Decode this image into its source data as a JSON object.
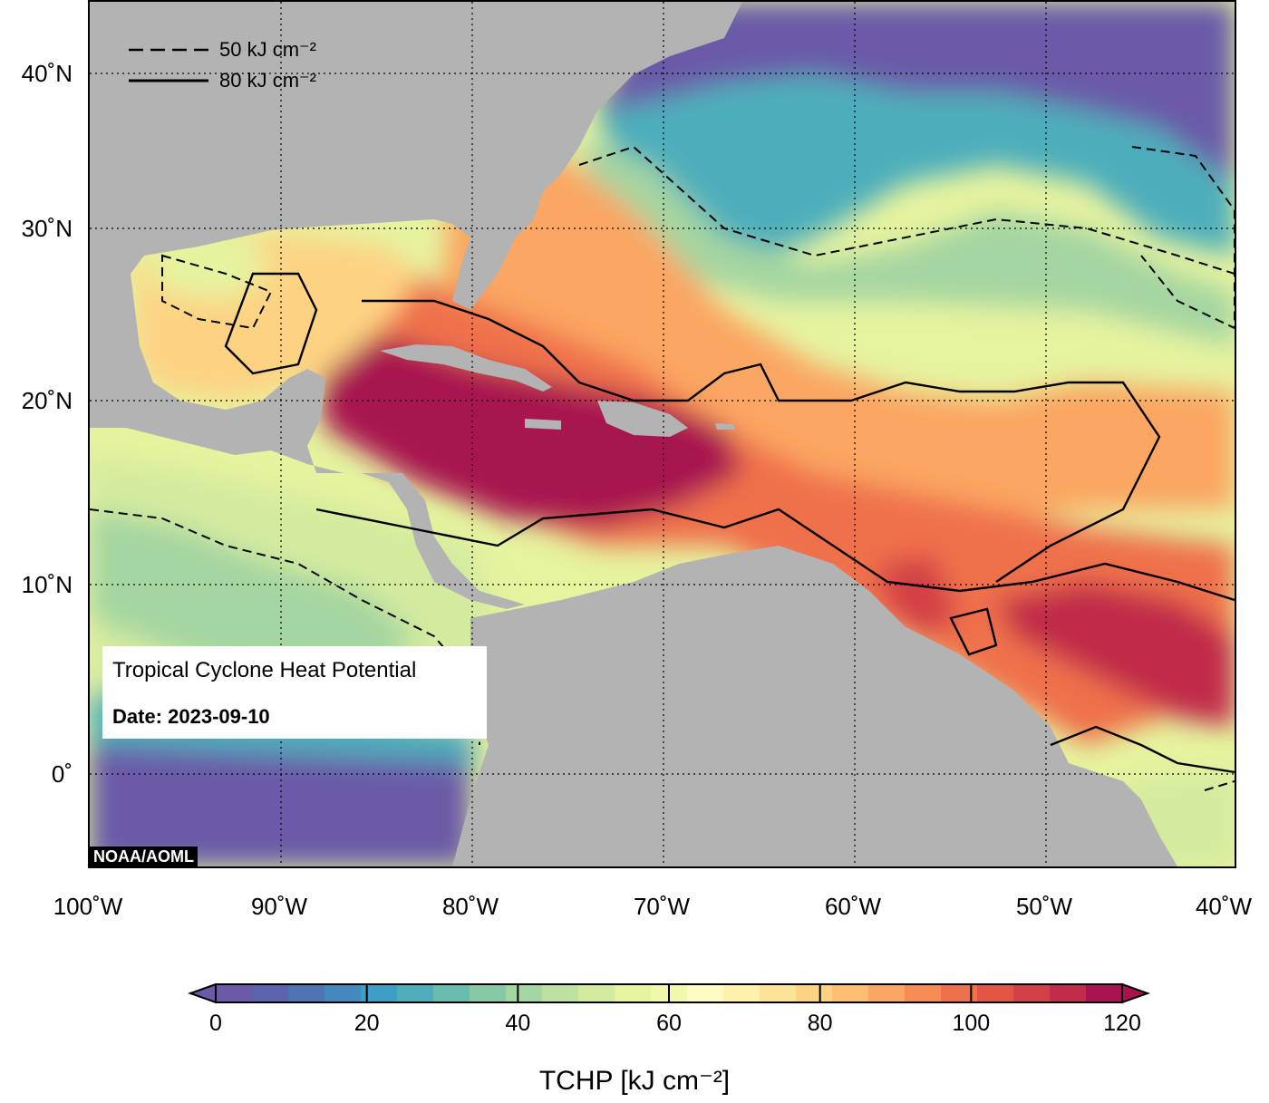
{
  "map": {
    "title": "Tropical Cyclone Heat Potential",
    "date_label": "Date: 2023-09-10",
    "credit": "NOAA/AOML",
    "lat_labels": [
      "40˚N",
      "30˚N",
      "20˚N",
      "10˚N",
      "0˚"
    ],
    "lon_labels": [
      "100˚W",
      "90˚W",
      "80˚W",
      "70˚W",
      "60˚W",
      "50˚W",
      "40˚W"
    ],
    "legend": {
      "dashed_label": "50 kJ cm⁻²",
      "solid_label": "80 kJ cm⁻²"
    },
    "colors": {
      "land": "#b3b3b3",
      "deep_low": "#6a5aa8",
      "high": "#a8124f"
    }
  },
  "colorbar": {
    "title": "TCHP [kJ cm⁻²]",
    "tick_labels": [
      "0",
      "20",
      "40",
      "60",
      "80",
      "100",
      "120"
    ],
    "range": [
      0,
      120
    ],
    "colors": [
      "#6a5aa8",
      "#5c63ad",
      "#4f74b5",
      "#4488c0",
      "#3f9ec3",
      "#4eaebb",
      "#6abdae",
      "#87c8a5",
      "#a5d5a1",
      "#bde1a0",
      "#d3eb9f",
      "#e6f39f",
      "#f2f8ab",
      "#fbfbc2",
      "#fef1a9",
      "#fde397",
      "#fdd383",
      "#fdbe72",
      "#fba662",
      "#f78d55",
      "#ef714b",
      "#e35646",
      "#d34047",
      "#c12c4a",
      "#a8124f"
    ]
  }
}
